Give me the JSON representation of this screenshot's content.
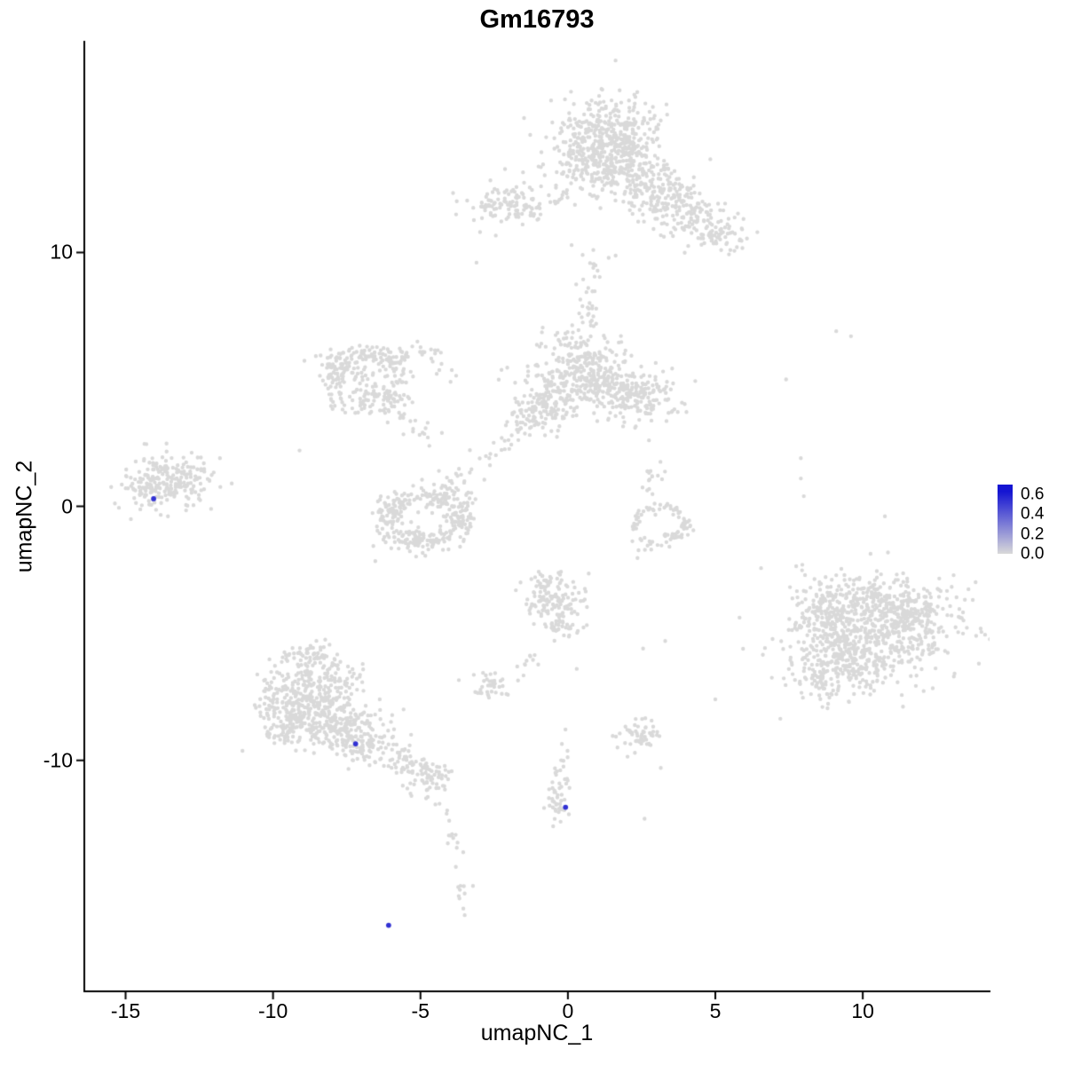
{
  "chart_data": {
    "type": "scatter",
    "title": "Gm16793",
    "xlabel": "umapNC_1",
    "ylabel": "umapNC_2",
    "xlim": [
      -16.4,
      14.3
    ],
    "ylim": [
      -19.1,
      18.3
    ],
    "x_ticks": [
      -15,
      -10,
      -5,
      0,
      5,
      10
    ],
    "y_ticks": [
      10,
      0,
      -10
    ],
    "grid": false,
    "point_color": "#d9d9d9",
    "point_radius": 2.2,
    "highlight_radius": 2.9,
    "seed": 42,
    "legend": {
      "position": "right",
      "ticks": [
        0.6,
        0.4,
        0.2,
        0.0
      ],
      "range": [
        0.0,
        0.7
      ],
      "low_color": "#d9d9d9",
      "high_color": "#1515d2"
    },
    "clusters": [
      {
        "type": "gauss",
        "cx": 1.3,
        "cy": 14.9,
        "sx": 0.85,
        "sy": 0.65,
        "n": 240
      },
      {
        "type": "gauss",
        "cx": 0.8,
        "cy": 13.6,
        "sx": 0.7,
        "sy": 0.55,
        "n": 150
      },
      {
        "type": "gauss",
        "cx": 2.1,
        "cy": 13.1,
        "sx": 0.75,
        "sy": 0.55,
        "n": 140
      },
      {
        "type": "gauss",
        "cx": 1.9,
        "cy": 14.2,
        "sx": 0.5,
        "sy": 0.5,
        "n": 80
      },
      {
        "type": "gauss",
        "cx": 3.0,
        "cy": 12.0,
        "sx": 0.65,
        "sy": 0.5,
        "n": 110
      },
      {
        "type": "gauss",
        "cx": 4.2,
        "cy": 11.4,
        "sx": 0.6,
        "sy": 0.45,
        "n": 85
      },
      {
        "type": "gauss",
        "cx": 5.2,
        "cy": 10.7,
        "sx": 0.5,
        "sy": 0.4,
        "n": 55
      },
      {
        "type": "trail",
        "x1": 2.6,
        "y1": 13.2,
        "x2": 4.0,
        "y2": 12.0,
        "w": 0.3,
        "n": 30
      },
      {
        "type": "gauss",
        "cx": 1.5,
        "cy": 14.0,
        "sx": 1.5,
        "sy": 1.2,
        "n": 40
      },
      {
        "type": "gauss",
        "cx": -2.4,
        "cy": 11.9,
        "sx": 0.55,
        "sy": 0.4,
        "n": 85
      },
      {
        "type": "gauss",
        "cx": -1.3,
        "cy": 11.8,
        "sx": 0.35,
        "sy": 0.3,
        "n": 25
      },
      {
        "type": "trail",
        "x1": -0.8,
        "y1": 12.0,
        "x2": 0.2,
        "y2": 12.4,
        "w": 0.2,
        "n": 12
      },
      {
        "type": "gauss",
        "cx": 0.3,
        "cy": 5.4,
        "sx": 0.75,
        "sy": 0.75,
        "n": 260
      },
      {
        "type": "gauss",
        "cx": 1.5,
        "cy": 4.7,
        "sx": 0.6,
        "sy": 0.5,
        "n": 120
      },
      {
        "type": "gauss",
        "cx": 2.55,
        "cy": 4.35,
        "sx": 0.5,
        "sy": 0.45,
        "n": 110
      },
      {
        "type": "gauss",
        "cx": -0.6,
        "cy": 4.1,
        "sx": 0.5,
        "sy": 0.45,
        "n": 90
      },
      {
        "type": "gauss",
        "cx": -1.3,
        "cy": 3.5,
        "sx": 0.4,
        "sy": 0.35,
        "n": 45
      },
      {
        "type": "trail",
        "x1": 0.4,
        "y1": 6.8,
        "x2": 0.9,
        "y2": 8.6,
        "w": 0.25,
        "n": 22
      },
      {
        "type": "gauss",
        "cx": 1.0,
        "cy": 9.2,
        "sx": 0.3,
        "sy": 0.35,
        "n": 14
      },
      {
        "type": "gauss",
        "cx": 0.8,
        "cy": 5.0,
        "sx": 1.6,
        "sy": 1.0,
        "n": 50
      },
      {
        "type": "ring",
        "cx": -6.9,
        "cy": 5.0,
        "rx": 1.2,
        "ry": 1.05,
        "w": 0.25,
        "n": 180,
        "a0": 0,
        "a1": 360
      },
      {
        "type": "gauss",
        "cx": -7.6,
        "cy": 5.6,
        "sx": 0.45,
        "sy": 0.4,
        "n": 40
      },
      {
        "type": "gauss",
        "cx": -6.2,
        "cy": 4.2,
        "sx": 0.45,
        "sy": 0.35,
        "n": 40
      },
      {
        "type": "gauss",
        "cx": -6.9,
        "cy": 5.0,
        "sx": 0.5,
        "sy": 0.45,
        "n": 25
      },
      {
        "type": "trail",
        "x1": -6.1,
        "y1": 5.6,
        "x2": -4.8,
        "y2": 6.3,
        "w": 0.25,
        "n": 22
      },
      {
        "type": "trail",
        "x1": -4.8,
        "y1": 6.3,
        "x2": -4.0,
        "y2": 5.2,
        "w": 0.2,
        "n": 15
      },
      {
        "type": "trail",
        "x1": -6.2,
        "y1": 4.0,
        "x2": -4.6,
        "y2": 2.6,
        "w": 0.25,
        "n": 20
      },
      {
        "type": "trail",
        "x1": -1.6,
        "y1": 3.3,
        "x2": -3.3,
        "y2": 1.5,
        "w": 0.25,
        "n": 25
      },
      {
        "type": "trail",
        "x1": -3.3,
        "y1": 1.5,
        "x2": -4.2,
        "y2": 0.7,
        "w": 0.2,
        "n": 10
      },
      {
        "type": "ring",
        "cx": -4.9,
        "cy": -0.5,
        "rx": 1.25,
        "ry": 0.85,
        "w": 0.22,
        "n": 190,
        "a0": 0,
        "a1": 360
      },
      {
        "type": "gauss",
        "cx": -5.2,
        "cy": -1.3,
        "sx": 0.6,
        "sy": 0.3,
        "n": 55
      },
      {
        "type": "gauss",
        "cx": -4.2,
        "cy": 0.6,
        "sx": 0.5,
        "sy": 0.3,
        "n": 40
      },
      {
        "type": "gauss",
        "cx": -3.6,
        "cy": -0.5,
        "sx": 0.3,
        "sy": 0.45,
        "n": 35
      },
      {
        "type": "gauss",
        "cx": -6.0,
        "cy": -0.1,
        "sx": 0.3,
        "sy": 0.35,
        "n": 30
      },
      {
        "type": "gauss",
        "cx": -13.7,
        "cy": 1.0,
        "sx": 0.65,
        "sy": 0.55,
        "n": 170
      },
      {
        "type": "gauss",
        "cx": -12.7,
        "cy": 1.3,
        "sx": 0.4,
        "sy": 0.35,
        "n": 40
      },
      {
        "type": "gauss",
        "cx": -14.3,
        "cy": 0.5,
        "sx": 0.3,
        "sy": 0.3,
        "n": 30
      },
      {
        "type": "ring",
        "cx": 3.15,
        "cy": -0.65,
        "rx": 0.85,
        "ry": 0.65,
        "w": 0.12,
        "n": 70,
        "a0": -80,
        "a1": 200
      },
      {
        "type": "gauss",
        "cx": 2.9,
        "cy": -1.5,
        "sx": 0.3,
        "sy": 0.2,
        "n": 15
      },
      {
        "type": "trail",
        "x1": 2.85,
        "y1": 1.5,
        "x2": 2.95,
        "y2": 0.2,
        "w": 0.18,
        "n": 16
      },
      {
        "type": "gauss",
        "cx": 10.4,
        "cy": -4.9,
        "sx": 1.35,
        "sy": 1.05,
        "n": 520
      },
      {
        "type": "gauss",
        "cx": 9.3,
        "cy": -6.1,
        "sx": 0.8,
        "sy": 0.65,
        "n": 170
      },
      {
        "type": "gauss",
        "cx": 11.4,
        "cy": -4.2,
        "sx": 0.7,
        "sy": 0.55,
        "n": 140
      },
      {
        "type": "gauss",
        "cx": 8.7,
        "cy": -4.4,
        "sx": 0.55,
        "sy": 0.5,
        "n": 80
      },
      {
        "type": "gauss",
        "cx": 9.8,
        "cy": -3.4,
        "sx": 0.6,
        "sy": 0.4,
        "n": 70
      },
      {
        "type": "gauss",
        "cx": 10.2,
        "cy": -5.2,
        "sx": 1.9,
        "sy": 1.5,
        "n": 70
      },
      {
        "type": "gauss",
        "cx": 8.6,
        "cy": -7.0,
        "sx": 0.4,
        "sy": 0.35,
        "n": 40
      },
      {
        "type": "gauss",
        "cx": -8.6,
        "cy": -7.0,
        "sx": 0.85,
        "sy": 0.6,
        "n": 190
      },
      {
        "type": "gauss",
        "cx": -8.9,
        "cy": -8.3,
        "sx": 0.7,
        "sy": 0.55,
        "n": 160
      },
      {
        "type": "gauss",
        "cx": -7.7,
        "cy": -8.5,
        "sx": 0.7,
        "sy": 0.5,
        "n": 150
      },
      {
        "type": "gauss",
        "cx": -7.0,
        "cy": -9.3,
        "sx": 0.55,
        "sy": 0.4,
        "n": 85
      },
      {
        "type": "gauss",
        "cx": -9.6,
        "cy": -8.8,
        "sx": 0.45,
        "sy": 0.4,
        "n": 55
      },
      {
        "type": "gauss",
        "cx": -8.7,
        "cy": -5.9,
        "sx": 0.5,
        "sy": 0.3,
        "n": 50
      },
      {
        "type": "gauss",
        "cx": -9.9,
        "cy": -7.6,
        "sx": 0.35,
        "sy": 0.35,
        "n": 35
      },
      {
        "type": "trail",
        "x1": -6.4,
        "y1": -9.7,
        "x2": -4.9,
        "y2": -10.4,
        "w": 0.28,
        "n": 70
      },
      {
        "type": "gauss",
        "cx": -4.5,
        "cy": -10.8,
        "sx": 0.35,
        "sy": 0.3,
        "n": 45
      },
      {
        "type": "trail",
        "x1": -4.4,
        "y1": -11.4,
        "x2": -3.9,
        "y2": -13.5,
        "w": 0.15,
        "n": 14
      },
      {
        "type": "gauss",
        "cx": -3.6,
        "cy": -15.2,
        "sx": 0.18,
        "sy": 0.25,
        "n": 9
      },
      {
        "type": "gauss",
        "cx": -0.5,
        "cy": -3.7,
        "sx": 0.5,
        "sy": 0.5,
        "n": 120
      },
      {
        "type": "gauss",
        "cx": -0.2,
        "cy": -4.7,
        "sx": 0.3,
        "sy": 0.25,
        "n": 30
      },
      {
        "type": "gauss",
        "cx": -0.7,
        "cy": -2.9,
        "sx": 0.3,
        "sy": 0.2,
        "n": 18
      },
      {
        "type": "trail",
        "x1": -1.2,
        "y1": -5.9,
        "x2": -1.6,
        "y2": -6.6,
        "w": 0.15,
        "n": 10
      },
      {
        "type": "gauss",
        "cx": -2.6,
        "cy": -7.0,
        "sx": 0.35,
        "sy": 0.28,
        "n": 40
      },
      {
        "type": "trail",
        "x1": 0.0,
        "y1": -8.6,
        "x2": -0.3,
        "y2": -10.9,
        "w": 0.12,
        "n": 14
      },
      {
        "type": "gauss",
        "cx": -0.35,
        "cy": -11.6,
        "sx": 0.2,
        "sy": 0.4,
        "n": 40
      },
      {
        "type": "gauss",
        "cx": 2.4,
        "cy": -9.0,
        "sx": 0.33,
        "sy": 0.28,
        "n": 55
      }
    ],
    "singles": [
      [
        -3.1,
        9.6
      ],
      [
        0.5,
        9.9
      ],
      [
        7.4,
        5.0
      ],
      [
        9.1,
        6.9
      ],
      [
        9.6,
        6.7
      ],
      [
        7.9,
        1.9
      ],
      [
        7.9,
        1.1
      ],
      [
        8.0,
        0.4
      ],
      [
        7.95,
        -2.3
      ],
      [
        -11.8,
        1.9
      ],
      [
        -11.4,
        0.9
      ],
      [
        -12.1,
        -0.1
      ],
      [
        2.75,
        2.6
      ],
      [
        0.3,
        -6.4
      ],
      [
        -0.5,
        -12.6
      ],
      [
        -3.8,
        -14.2
      ],
      [
        -3.5,
        -16.1
      ],
      [
        -5.6,
        -11.0
      ],
      [
        3.15,
        -10.3
      ],
      [
        2.6,
        -12.3
      ],
      [
        3.3,
        -5.3
      ],
      [
        2.55,
        -5.6
      ],
      [
        5.0,
        -7.6
      ],
      [
        -9.1,
        2.2
      ]
    ],
    "highlighted_points": [
      {
        "x": -14.05,
        "y": 0.3,
        "value": 0.6
      },
      {
        "x": -7.2,
        "y": -9.35,
        "value": 0.6
      },
      {
        "x": -0.08,
        "y": -11.85,
        "value": 0.6
      },
      {
        "x": -6.08,
        "y": -16.5,
        "value": 0.6
      }
    ]
  }
}
